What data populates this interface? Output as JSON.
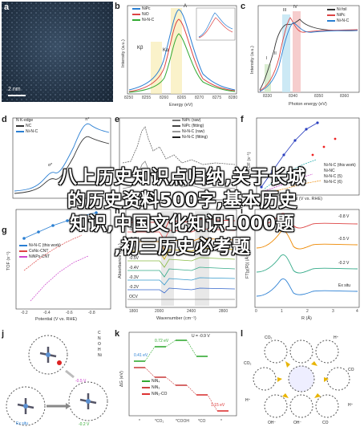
{
  "panels": {
    "a": {
      "label": "a",
      "scale": "2 nm"
    },
    "b": {
      "label": "b",
      "ylabel": "Intensity (a.u.)",
      "xlabel": "Energy (eV)",
      "legend": [
        "NiPc",
        "NiO",
        "Ni-N-C"
      ],
      "ticks_x": [
        "8250",
        "8255",
        "8260",
        "8265",
        "8270",
        "8275",
        "8280"
      ],
      "peaks": [
        "Kβ",
        "Kα",
        "A"
      ],
      "inset": {
        "y": "χμ(E)",
        "x": "Energy (eV)"
      }
    },
    "c": {
      "label": "c",
      "ylabel": "Intensity (a.u.)",
      "xlabel": "Photon energy (eV)",
      "legend": [
        "Ni foil",
        "NiPc",
        "Ni-N-C"
      ],
      "ticks_x": [
        "8330",
        "8340",
        "8350",
        "8360"
      ],
      "peaks": [
        "I",
        "II",
        "III",
        "IV"
      ]
    },
    "d": {
      "label": "d",
      "legend": [
        "NC",
        "Ni-N-C"
      ],
      "title": "N K-edge",
      "peaks": [
        "π*",
        "σ*",
        "N₄ₑₑₑ",
        "Nₓₔₐₑ"
      ]
    },
    "e": {
      "label": "e",
      "legend": [
        "NiPc (raw)",
        "NiPc (fitting)",
        "Ni-N-C (raw)",
        "Ni-N-C (fitting)"
      ]
    },
    "f": {
      "label": "f",
      "ylabel": "TOF (s⁻¹)",
      "xlabel": "Potential (V vs. RHE)",
      "legend": [
        "Ni-N-C (this work)",
        "Ni-N-C (2)",
        "Ni-SAC",
        "Ni-N₄-C",
        "Ni-ZIF-8",
        "Ni-NC",
        "Ni-N-C (5)",
        "Ni-N-C (6)"
      ],
      "ticks_x": [
        "-1.0",
        "-0.8",
        "-0.6"
      ]
    },
    "g": {
      "label": "g",
      "ylabel": "TOF (s⁻¹)",
      "xlabel": "Potential (V vs. RHE)",
      "legend": [
        "Ni-N-C (this work)",
        "CoNc-CNT",
        "NiNPs-CNT"
      ],
      "ticks_x": [
        "-0.2",
        "-0.4",
        "-0.6",
        "-0.8"
      ]
    },
    "h": {
      "label": "h",
      "ylabel": "Absorbance (a.u.)",
      "xlabel": "Wavenumber (cm⁻¹)",
      "potentials": [
        "-0.9V",
        "-0.8V",
        "-0.7V",
        "-0.6V",
        "-0.5V",
        "-0.4V",
        "-0.3V",
        "-0.2V",
        "OCV"
      ],
      "ticks_x": [
        "1800",
        "2000",
        "2400",
        "2800"
      ]
    },
    "i": {
      "label": "i",
      "ylabel": "FT|χ(R)| (Å⁻³)",
      "xlabel": "R (Å)",
      "curves": [
        "-0.8 V",
        "-0.5 V",
        "-0.2 V",
        "Ex situ"
      ],
      "ticks_x": [
        "0",
        "1",
        "2",
        "3",
        "4"
      ],
      "sub": "RHE"
    },
    "j": {
      "label": "j",
      "states": [
        "Ex situ",
        "-0.5 V",
        "-0.2 V"
      ],
      "sub": "RHE",
      "elements": [
        "C",
        "N",
        "O",
        "H",
        "Ni"
      ]
    },
    "k": {
      "label": "k",
      "ylabel": "ΔG (eV)",
      "U": "U = -0.9 V",
      "values": [
        "0.41 eV",
        "0.72 eV",
        "1.15 eV"
      ],
      "legend": [
        "NiN₄",
        "NiN₃",
        "NiN₂-CO"
      ],
      "ticks_x": [
        "*",
        "*CO₂",
        "*COOH",
        "*CO",
        "*"
      ]
    },
    "l": {
      "label": "l",
      "species": [
        "CO₂",
        "CO₂",
        "H⁺",
        "H⁺",
        "CO",
        "OH⁻",
        "OH⁻",
        "CO",
        "H⁺"
      ]
    }
  },
  "overlay": {
    "line1": "八上历史知识点归纳,关于长城",
    "line2": "的历史资料500字,基本历史",
    "line3": "知识,中国文化知识1000题",
    "line4": ",初三历史必考题"
  }
}
